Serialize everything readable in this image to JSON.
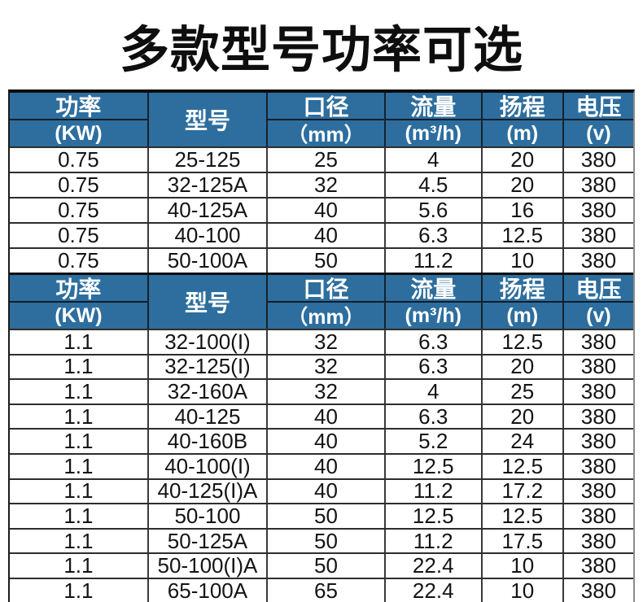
{
  "title": "多款型号功率可选",
  "colors": {
    "header_bg": "#2d6e9e",
    "header_text": "#ffffff",
    "body_text": "#141414",
    "border_dark": "#1c1c1c"
  },
  "chart_data": {
    "type": "table",
    "title": "多款型号功率可选",
    "columns": [
      {
        "id": "power",
        "line1": "功率",
        "line2": "(KW)"
      },
      {
        "id": "model",
        "line1": "型号",
        "line2": ""
      },
      {
        "id": "diameter",
        "line1": "口径",
        "line2": "（mm）"
      },
      {
        "id": "flow",
        "line1": "流量",
        "line2": "(m³/h)"
      },
      {
        "id": "head",
        "line1": "扬程",
        "line2": "(m)"
      },
      {
        "id": "voltage",
        "line1": "电压",
        "line2": "(v)"
      }
    ],
    "sections": [
      {
        "rows": [
          [
            "0.75",
            "25-125",
            "25",
            "4",
            "20",
            "380"
          ],
          [
            "0.75",
            "32-125A",
            "32",
            "4.5",
            "20",
            "380"
          ],
          [
            "0.75",
            "40-125A",
            "40",
            "5.6",
            "16",
            "380"
          ],
          [
            "0.75",
            "40-100",
            "40",
            "6.3",
            "12.5",
            "380"
          ],
          [
            "0.75",
            "50-100A",
            "50",
            "11.2",
            "10",
            "380"
          ]
        ]
      },
      {
        "rows": [
          [
            "1.1",
            "32-100(I)",
            "32",
            "6.3",
            "12.5",
            "380"
          ],
          [
            "1.1",
            "32-125(I)",
            "32",
            "6.3",
            "20",
            "380"
          ],
          [
            "1.1",
            "32-160A",
            "32",
            "4",
            "25",
            "380"
          ],
          [
            "1.1",
            "40-125",
            "40",
            "6.3",
            "20",
            "380"
          ],
          [
            "1.1",
            "40-160B",
            "40",
            "5.2",
            "24",
            "380"
          ],
          [
            "1.1",
            "40-100(I)",
            "40",
            "12.5",
            "12.5",
            "380"
          ],
          [
            "1.1",
            "40-125(I)A",
            "40",
            "11.2",
            "17.2",
            "380"
          ],
          [
            "1.1",
            "50-100",
            "50",
            "12.5",
            "12.5",
            "380"
          ],
          [
            "1.1",
            "50-125A",
            "50",
            "11.2",
            "17.5",
            "380"
          ],
          [
            "1.1",
            "50-100(I)A",
            "50",
            "22.4",
            "10",
            "380"
          ],
          [
            "1.1",
            "65-100A",
            "65",
            "22.4",
            "10",
            "380"
          ]
        ]
      }
    ]
  }
}
